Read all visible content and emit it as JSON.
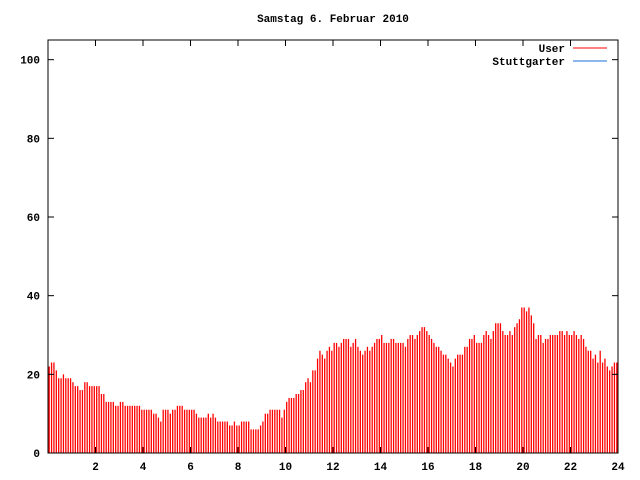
{
  "chart_data": {
    "type": "bar",
    "title": "Samstag 6. Februar 2010",
    "xlabel": "",
    "ylabel": "",
    "xlim": [
      0,
      24
    ],
    "ylim": [
      0,
      105
    ],
    "x_ticks": [
      2,
      4,
      6,
      8,
      10,
      12,
      14,
      16,
      18,
      20,
      22,
      24
    ],
    "y_ticks": [
      0,
      20,
      40,
      60,
      80,
      100
    ],
    "grid": false,
    "legend_position": "top-right",
    "x_start": 0.05,
    "x_step": 0.1,
    "series": [
      {
        "name": "User",
        "color": "#ff0000",
        "values": [
          22,
          23,
          23,
          21,
          19,
          19,
          20,
          19,
          19,
          19,
          18,
          17,
          17,
          16,
          16,
          18,
          18,
          17,
          17,
          17,
          17,
          17,
          15,
          15,
          13,
          13,
          13,
          13,
          12,
          12,
          13,
          13,
          12,
          12,
          12,
          12,
          12,
          12,
          12,
          11,
          11,
          11,
          11,
          11,
          10,
          10,
          9,
          8,
          11,
          11,
          11,
          10,
          11,
          11,
          12,
          12,
          12,
          11,
          11,
          11,
          11,
          11,
          10,
          9,
          9,
          9,
          9,
          10,
          9,
          10,
          9,
          8,
          8,
          8,
          8,
          8,
          7,
          7,
          8,
          7,
          7,
          8,
          8,
          8,
          8,
          6,
          6,
          6,
          6,
          7,
          8,
          10,
          10,
          11,
          11,
          11,
          11,
          11,
          9,
          11,
          13,
          14,
          14,
          14,
          15,
          15,
          16,
          16,
          18,
          19,
          18,
          21,
          21,
          24,
          26,
          25,
          24,
          26,
          27,
          26,
          28,
          28,
          27,
          28,
          29,
          29,
          29,
          27,
          28,
          29,
          27,
          26,
          25,
          26,
          27,
          26,
          27,
          28,
          29,
          29,
          30,
          28,
          28,
          28,
          29,
          29,
          28,
          28,
          28,
          28,
          27,
          29,
          30,
          30,
          29,
          30,
          31,
          32,
          32,
          31,
          30,
          29,
          28,
          27,
          27,
          26,
          25,
          25,
          24,
          23,
          22,
          24,
          25,
          25,
          25,
          27,
          27,
          29,
          29,
          30,
          28,
          28,
          28,
          30,
          31,
          30,
          29,
          31,
          33,
          33,
          33,
          31,
          30,
          30,
          31,
          30,
          32,
          33,
          34,
          37,
          37,
          36,
          37,
          35,
          33,
          29,
          30,
          30,
          28,
          29,
          29,
          30,
          30,
          30,
          30,
          31,
          31,
          30,
          31,
          30,
          30,
          31,
          30,
          29,
          30,
          29,
          27,
          26,
          26,
          24,
          25,
          23,
          26,
          23,
          24,
          22,
          21,
          22,
          23,
          23
        ]
      },
      {
        "name": "Stuttgarter",
        "color": "#1a6fdc",
        "values": []
      }
    ]
  }
}
